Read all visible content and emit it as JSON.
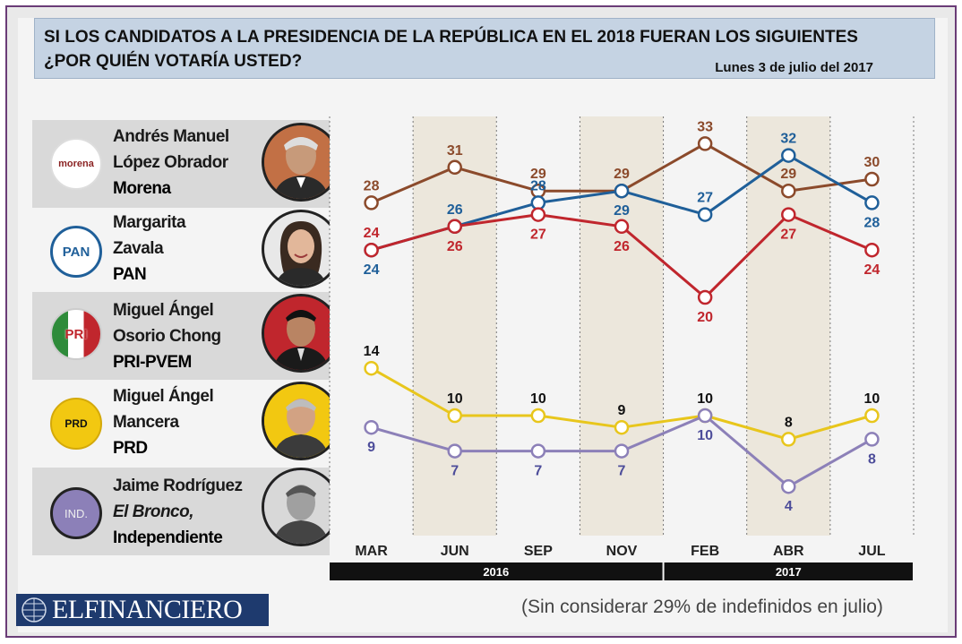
{
  "header": {
    "title_line1": "SI LOS CANDIDATOS A LA PRESIDENCIA DE LA REPÚBLICA EN EL 2018 FUERAN LOS SIGUIENTES",
    "title_line2": "¿POR QUIÉN VOTARÍA USTED?",
    "date": "Lunes 3 de julio del 2017"
  },
  "candidates": [
    {
      "line1": "Andrés Manuel",
      "line2": "López Obrador",
      "party": "Morena",
      "logo_text": "morena",
      "color": "#8b4a2b"
    },
    {
      "line1": "Margarita",
      "line2": "Zavala",
      "party": "PAN",
      "logo_text": "PAN",
      "color": "#1f5f99"
    },
    {
      "line1": "Miguel Ángel",
      "line2": "Osorio Chong",
      "party": "PRI-PVEM",
      "logo_text": "PRI",
      "color": "#c0262d"
    },
    {
      "line1": "Miguel Ángel",
      "line2": "Mancera",
      "party": "PRD",
      "logo_text": "PRD",
      "color": "#e8c61c"
    },
    {
      "line1": "Jaime Rodríguez",
      "line2": "El Bronco,",
      "party": "Independiente",
      "logo_text": "IND.",
      "color": "#8c80b8"
    }
  ],
  "chart_data": {
    "type": "line",
    "categories": [
      "MAR",
      "JUN",
      "SEP",
      "NOV",
      "FEB",
      "ABR",
      "JUL"
    ],
    "years": [
      {
        "label": "2016",
        "from": 0,
        "to": 3
      },
      {
        "label": "2017",
        "from": 4,
        "to": 6
      }
    ],
    "series": [
      {
        "name": "Morena",
        "color": "#8b4a2b",
        "values": [
          28,
          31,
          29,
          29,
          33,
          29,
          30
        ],
        "label_pos": [
          "above",
          "above",
          "above",
          "above",
          "above",
          "above",
          "above"
        ]
      },
      {
        "name": "PAN",
        "color": "#1f5f99",
        "values": [
          24,
          26,
          28,
          29,
          27,
          32,
          28
        ],
        "label_pos": [
          "below",
          "above",
          "above",
          "below",
          "above",
          "above",
          "below"
        ]
      },
      {
        "name": "PRI-PVEM",
        "color": "#c0262d",
        "values": [
          24,
          26,
          27,
          26,
          20,
          27,
          24
        ],
        "label_pos": [
          "above",
          "below",
          "below",
          "below",
          "below",
          "below",
          "below"
        ]
      },
      {
        "name": "PRD",
        "color": "#e8c61c",
        "label_color": "#111111",
        "values": [
          14,
          10,
          10,
          9,
          10,
          8,
          10
        ],
        "label_pos": [
          "above",
          "above",
          "above",
          "above",
          "above",
          "above",
          "above"
        ]
      },
      {
        "name": "Independiente",
        "color": "#8c80b8",
        "label_color": "#4d4d9a",
        "values": [
          9,
          7,
          7,
          7,
          10,
          4,
          8
        ],
        "label_pos": [
          "below",
          "below",
          "below",
          "below",
          "below",
          "below",
          "below"
        ]
      }
    ],
    "ylim": [
      0,
      35
    ],
    "xlabel": "",
    "ylabel": ""
  },
  "footer": {
    "brand": "ELFINANCIERO",
    "note": "(Sin considerar 29% de indefinidos en julio)"
  }
}
